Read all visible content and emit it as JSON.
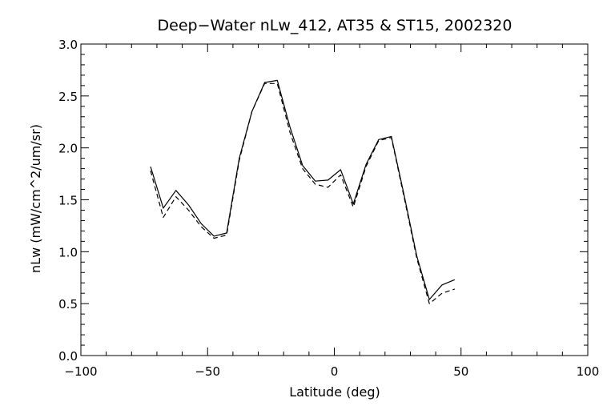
{
  "chart_data": {
    "type": "line",
    "title": "Deep−Water nLw_412, AT35 & ST15, 2002320",
    "xlabel": "Latitude (deg)",
    "ylabel": "nLw (mW/cm^2/um/sr)",
    "xlim": [
      -100,
      100
    ],
    "ylim": [
      0.0,
      3.0
    ],
    "x_ticks": [
      "−100",
      "−50",
      "0",
      "50",
      "100"
    ],
    "y_ticks": [
      "0.0",
      "0.5",
      "1.0",
      "1.5",
      "2.0",
      "2.5",
      "3.0"
    ],
    "grid": false,
    "series": [
      {
        "style": "solid",
        "color": "#000000",
        "x": [
          -72.5,
          -67.5,
          -62.5,
          -57.5,
          -52.5,
          -47.5,
          -42.5,
          -37.5,
          -32.5,
          -27.5,
          -22.5,
          -17.5,
          -12.5,
          -7.5,
          -2.5,
          2.5,
          7.5,
          12.5,
          17.5,
          22.5,
          27.5,
          32.5,
          37.5,
          42.5,
          47.5
        ],
        "y": [
          1.82,
          1.42,
          1.59,
          1.45,
          1.27,
          1.15,
          1.18,
          1.9,
          2.35,
          2.63,
          2.65,
          2.2,
          1.83,
          1.68,
          1.69,
          1.79,
          1.46,
          1.84,
          2.08,
          2.11,
          1.55,
          0.96,
          0.54,
          0.68,
          0.73
        ]
      },
      {
        "style": "dashed",
        "color": "#000000",
        "x": [
          -72.5,
          -67.5,
          -62.5,
          -57.5,
          -52.5,
          -47.5,
          -42.5,
          -37.5,
          -32.5,
          -27.5,
          -22.5,
          -17.5,
          -12.5,
          -7.5,
          -2.5,
          2.5,
          7.5,
          12.5,
          17.5,
          22.5,
          27.5,
          32.5,
          37.5,
          42.5,
          47.5
        ],
        "y": [
          1.78,
          1.33,
          1.53,
          1.4,
          1.24,
          1.13,
          1.16,
          1.88,
          2.35,
          2.62,
          2.62,
          2.15,
          1.8,
          1.65,
          1.62,
          1.74,
          1.43,
          1.82,
          2.07,
          2.1,
          1.53,
          0.94,
          0.5,
          0.6,
          0.64
        ]
      }
    ]
  }
}
